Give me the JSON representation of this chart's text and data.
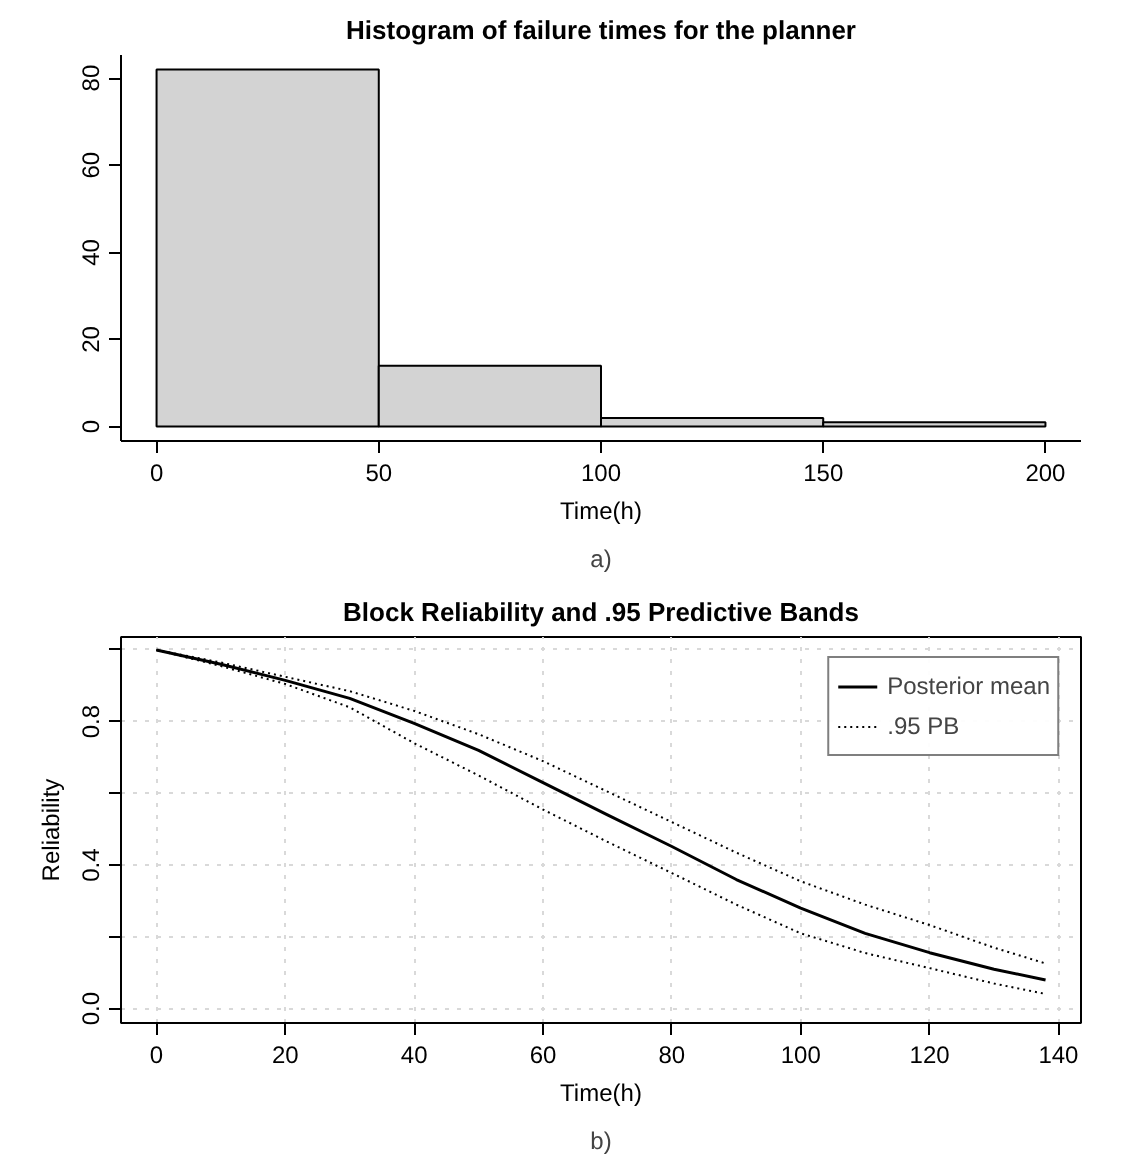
{
  "chart_data": [
    {
      "type": "histogram",
      "title": "Histogram of failure times for the planner",
      "xlabel": "Time(h)",
      "bins": [
        0,
        50,
        100,
        150,
        200
      ],
      "values": [
        82,
        14,
        2,
        1
      ],
      "color": "#d3d3d3",
      "xlim": [
        -8,
        208
      ],
      "ylim": [
        -3.3,
        85.3
      ],
      "xticks": [
        0,
        50,
        100,
        150,
        200
      ],
      "yticks": [
        0,
        20,
        40,
        60,
        80
      ],
      "grid": false,
      "annotations": [
        "a)"
      ]
    },
    {
      "type": "line",
      "title": "Block Reliability and .95 Predictive Bands",
      "xlabel": "Time(h)",
      "ylabel": "Reliability",
      "xlim": [
        -5.5,
        143.5
      ],
      "ylim": [
        -0.04,
        1.036
      ],
      "xticks": [
        0,
        20,
        40,
        60,
        80,
        100,
        120,
        140
      ],
      "yticks": [
        {
          "value": 0,
          "label": "0.0"
        },
        {
          "value": 0.2,
          "label": null
        },
        {
          "value": 0.4,
          "label": "0.4"
        },
        {
          "value": 0.6,
          "label": null
        },
        {
          "value": 0.8,
          "label": "0.8"
        },
        {
          "value": 1.0,
          "label": null
        }
      ],
      "grid": true,
      "legend": "top right",
      "annotations": [
        "b)"
      ],
      "series": [
        {
          "name": "Posterior mean",
          "color": "#000000",
          "line_style": "solid",
          "x": [
            0,
            10,
            20,
            30,
            40,
            50,
            60,
            70,
            80,
            90,
            100,
            110,
            120,
            130,
            138
          ],
          "values": [
            1.0,
            0.96,
            0.915,
            0.865,
            0.795,
            0.72,
            0.63,
            0.54,
            0.452,
            0.36,
            0.28,
            0.21,
            0.156,
            0.11,
            0.08
          ]
        },
        {
          "name": ".95 PB",
          "color": "#000000",
          "line_style": "dotted",
          "x": [
            0,
            10,
            20,
            30,
            40,
            50,
            60,
            70,
            80,
            90,
            100,
            110,
            120,
            130,
            138
          ],
          "values": [
            1.0,
            0.965,
            0.925,
            0.885,
            0.83,
            0.765,
            0.69,
            0.605,
            0.52,
            0.435,
            0.355,
            0.29,
            0.233,
            0.17,
            0.126
          ]
        },
        {
          "color": "#000000",
          "line_style": "dotted",
          "x": [
            0,
            10,
            20,
            30,
            40,
            50,
            60,
            70,
            80,
            90,
            100,
            110,
            120,
            130,
            138
          ],
          "values": [
            1.0,
            0.955,
            0.905,
            0.84,
            0.74,
            0.65,
            0.555,
            0.465,
            0.378,
            0.29,
            0.21,
            0.155,
            0.113,
            0.07,
            0.041
          ]
        }
      ]
    }
  ]
}
